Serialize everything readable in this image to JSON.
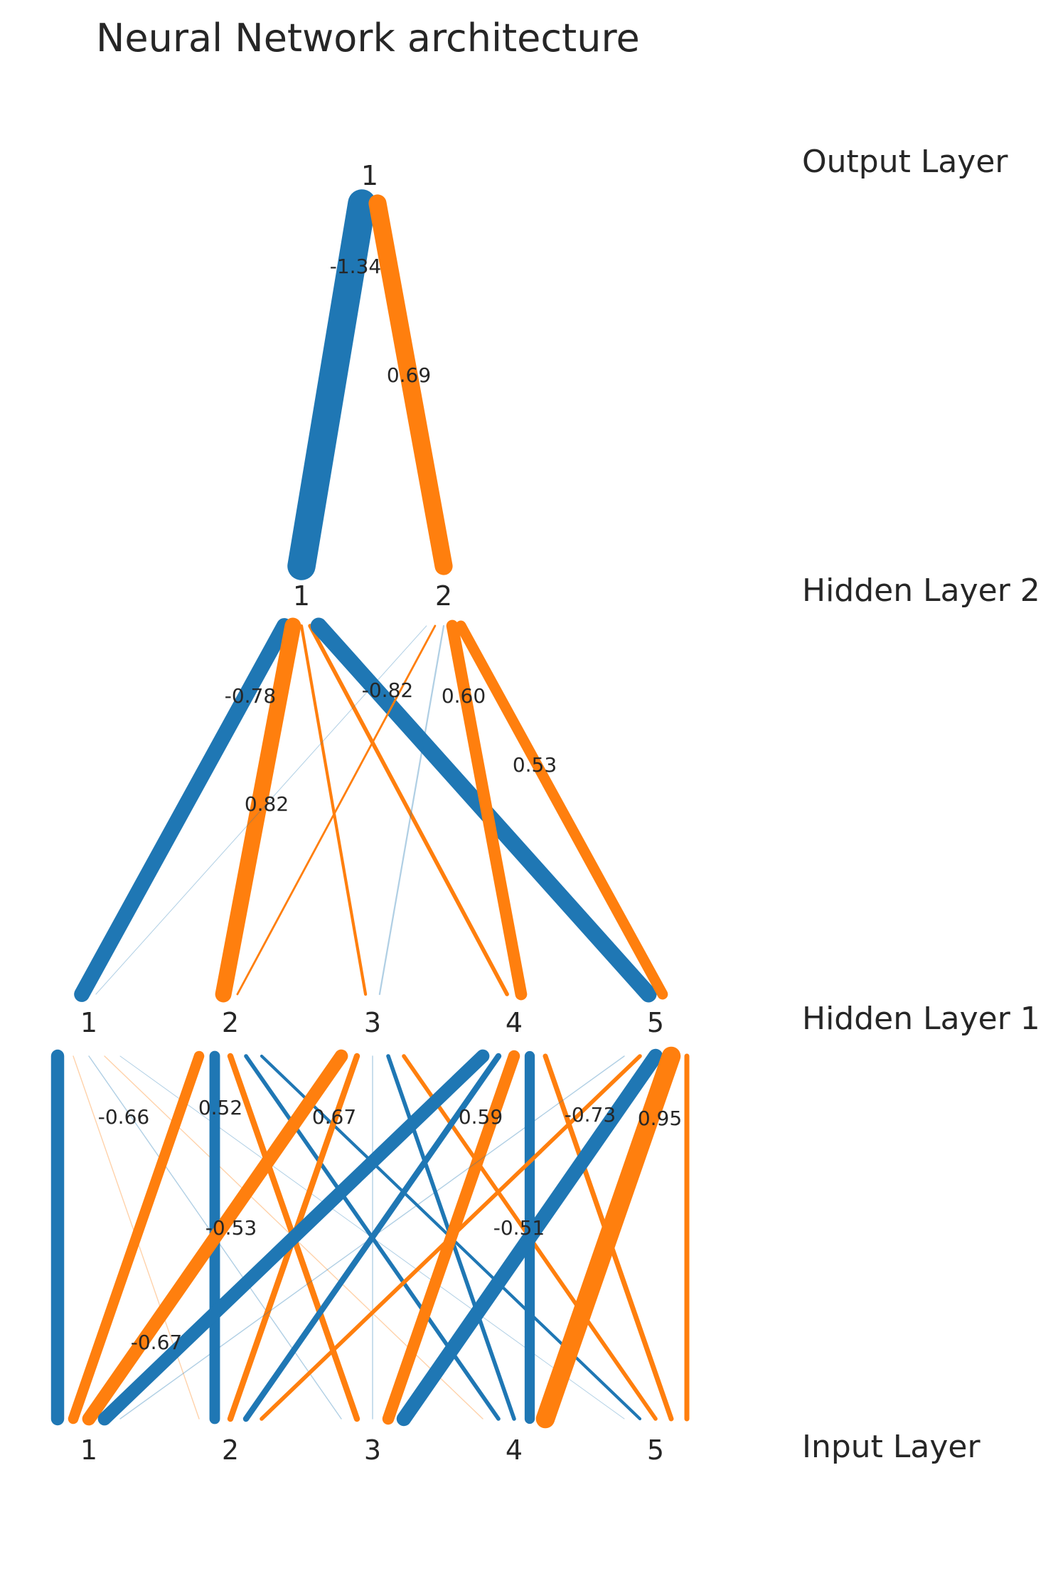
{
  "title": "Neural Network architecture",
  "layer_labels": [
    "Output Layer",
    "Hidden Layer 2",
    "Hidden Layer 1",
    "Input Layer"
  ],
  "colors": {
    "negative": "#1f77b4",
    "positive": "#ff7f0e",
    "text": "#262626",
    "background": "#ffffff"
  },
  "layers": [
    {
      "name": "Input Layer",
      "nodes": [
        "1",
        "2",
        "3",
        "4",
        "5"
      ]
    },
    {
      "name": "Hidden Layer 1",
      "nodes": [
        "1",
        "2",
        "3",
        "4",
        "5"
      ]
    },
    {
      "name": "Hidden Layer 2",
      "nodes": [
        "1",
        "2"
      ]
    },
    {
      "name": "Output Layer",
      "nodes": [
        "1"
      ]
    }
  ],
  "weights": [
    [
      [
        -0.66,
        0.05,
        -0.05,
        0.05,
        -0.02
      ],
      [
        0.52,
        -0.53,
        0.3,
        -0.2,
        -0.15
      ],
      [
        0.67,
        0.3,
        -0.05,
        -0.2,
        0.2
      ],
      [
        -0.67,
        -0.3,
        0.59,
        -0.51,
        0.25
      ],
      [
        -0.05,
        0.2,
        -0.73,
        0.95,
        0.25
      ]
    ],
    [
      [
        -0.78,
        0.82,
        0.15,
        0.2,
        -0.82
      ],
      [
        -0.02,
        0.1,
        -0.08,
        0.6,
        0.53
      ]
    ],
    [
      [
        -1.34,
        0.69
      ]
    ]
  ],
  "weight_labels": [
    "-0.66",
    "0.52",
    "0.67",
    "0.59",
    "-0.73",
    "0.95",
    "-0.53",
    "-0.51",
    "-0.67",
    "-0.78",
    "-0.82",
    "0.60",
    "0.53",
    "0.82",
    "-1.34",
    "0.69"
  ]
}
